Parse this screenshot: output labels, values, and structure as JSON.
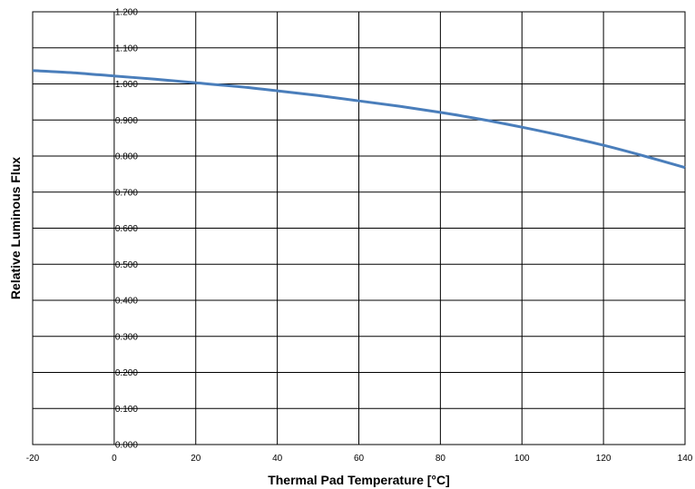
{
  "chart_data": {
    "type": "line",
    "xlabel": "Thermal Pad Temperature [°C]",
    "ylabel": "Relative Luminous Flux",
    "xlim": [
      -20,
      140
    ],
    "ylim": [
      0.0,
      1.2
    ],
    "x_ticks": [
      -20,
      0,
      20,
      40,
      60,
      80,
      100,
      120,
      140
    ],
    "x_tick_labels": [
      "-20",
      "0",
      "20",
      "40",
      "60",
      "80",
      "100",
      "120",
      "140"
    ],
    "y_ticks": [
      0.0,
      0.1,
      0.2,
      0.3,
      0.4,
      0.5,
      0.6,
      0.7,
      0.8,
      0.9,
      1.0,
      1.1,
      1.2
    ],
    "y_tick_labels": [
      "0.000",
      "0.100",
      "0.200",
      "0.300",
      "0.400",
      "0.500",
      "0.600",
      "0.700",
      "0.800",
      "0.900",
      "1.000",
      "1.100",
      "1.200"
    ],
    "grid": true,
    "series": [
      {
        "color": "#4a7ebb",
        "x": [
          -20,
          -10,
          0,
          10,
          20,
          30,
          40,
          50,
          60,
          70,
          80,
          90,
          100,
          110,
          120,
          130,
          140
        ],
        "y": [
          1.037,
          1.031,
          1.022,
          1.013,
          1.003,
          0.993,
          0.981,
          0.968,
          0.953,
          0.938,
          0.921,
          0.902,
          0.88,
          0.856,
          0.83,
          0.8,
          0.768
        ]
      }
    ]
  }
}
